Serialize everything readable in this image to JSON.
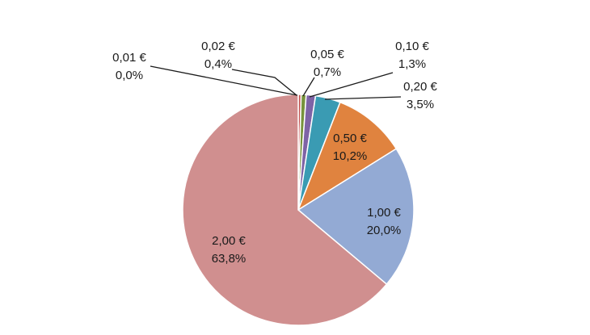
{
  "chart_data": {
    "type": "pie",
    "title": "",
    "slices": [
      {
        "category": "0,01 €",
        "percent_label": "0,0%",
        "value": 0.0,
        "color": "#4a7ebb"
      },
      {
        "category": "0,02 €",
        "percent_label": "0,4%",
        "value": 0.4,
        "color": "#c0504d"
      },
      {
        "category": "0,05 €",
        "percent_label": "0,7%",
        "value": 0.7,
        "color": "#77933c"
      },
      {
        "category": "0,10 €",
        "percent_label": "1,3%",
        "value": 1.3,
        "color": "#7e63a6"
      },
      {
        "category": "0,20 €",
        "percent_label": "3,5%",
        "value": 3.5,
        "color": "#3a9bb3"
      },
      {
        "category": "0,50 €",
        "percent_label": "10,2%",
        "value": 10.2,
        "color": "#e0833f"
      },
      {
        "category": "1,00 €",
        "percent_label": "20,0%",
        "value": 20.0,
        "color": "#93aad4"
      },
      {
        "category": "2,00 €",
        "percent_label": "63,8%",
        "value": 63.8,
        "color": "#d08f8f"
      }
    ],
    "start_angle": "12 o'clock, clockwise",
    "legend": "none",
    "label_placement": "inside for large slices, outside with leader lines for small slices"
  }
}
